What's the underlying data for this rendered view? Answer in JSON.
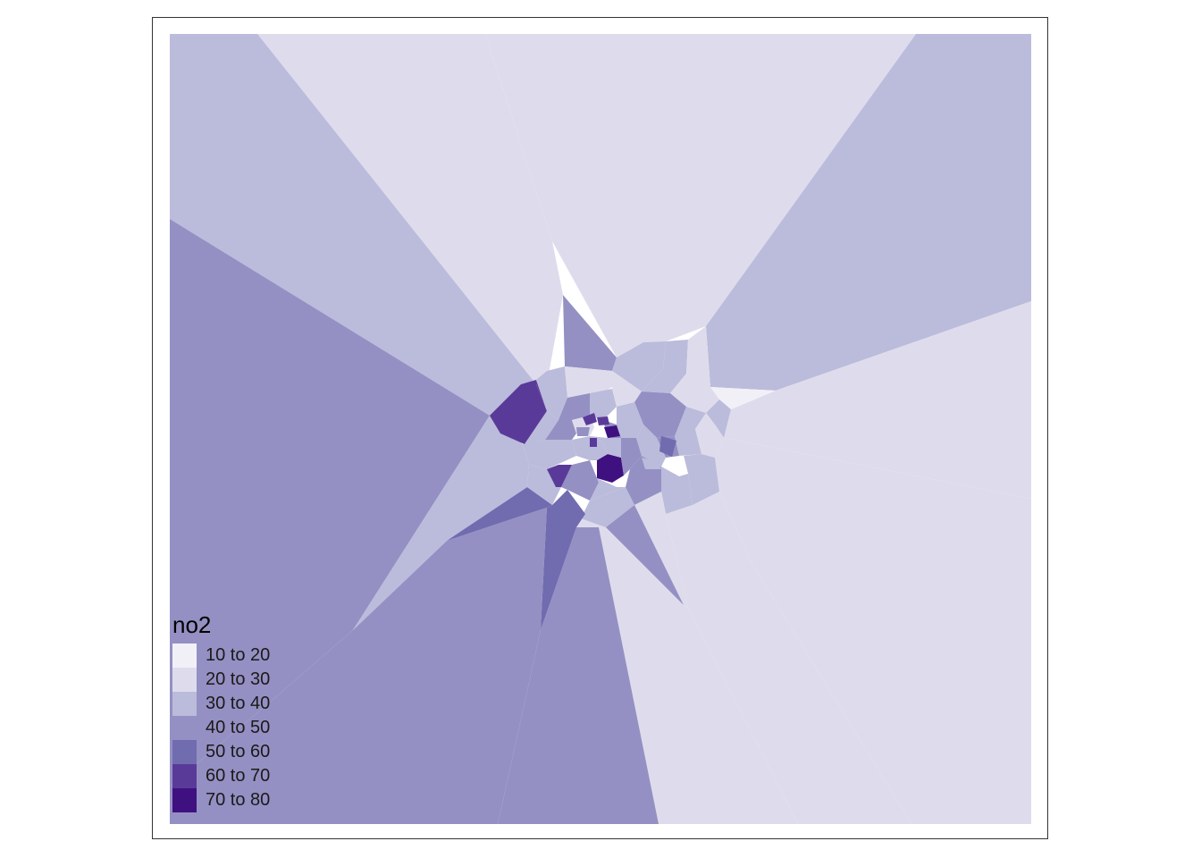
{
  "legend": {
    "title": "no2",
    "classes": [
      {
        "label": "10 to 20",
        "color": "#f2f0f7"
      },
      {
        "label": "20 to 30",
        "color": "#dedcec"
      },
      {
        "label": "30 to 40",
        "color": "#bbbbdb"
      },
      {
        "label": "40 to 50",
        "color": "#9490c3"
      },
      {
        "label": "50 to 60",
        "color": "#716bb0"
      },
      {
        "label": "60 to 70",
        "color": "#5a3a99"
      },
      {
        "label": "70 to 80",
        "color": "#3f1080"
      }
    ]
  }
}
